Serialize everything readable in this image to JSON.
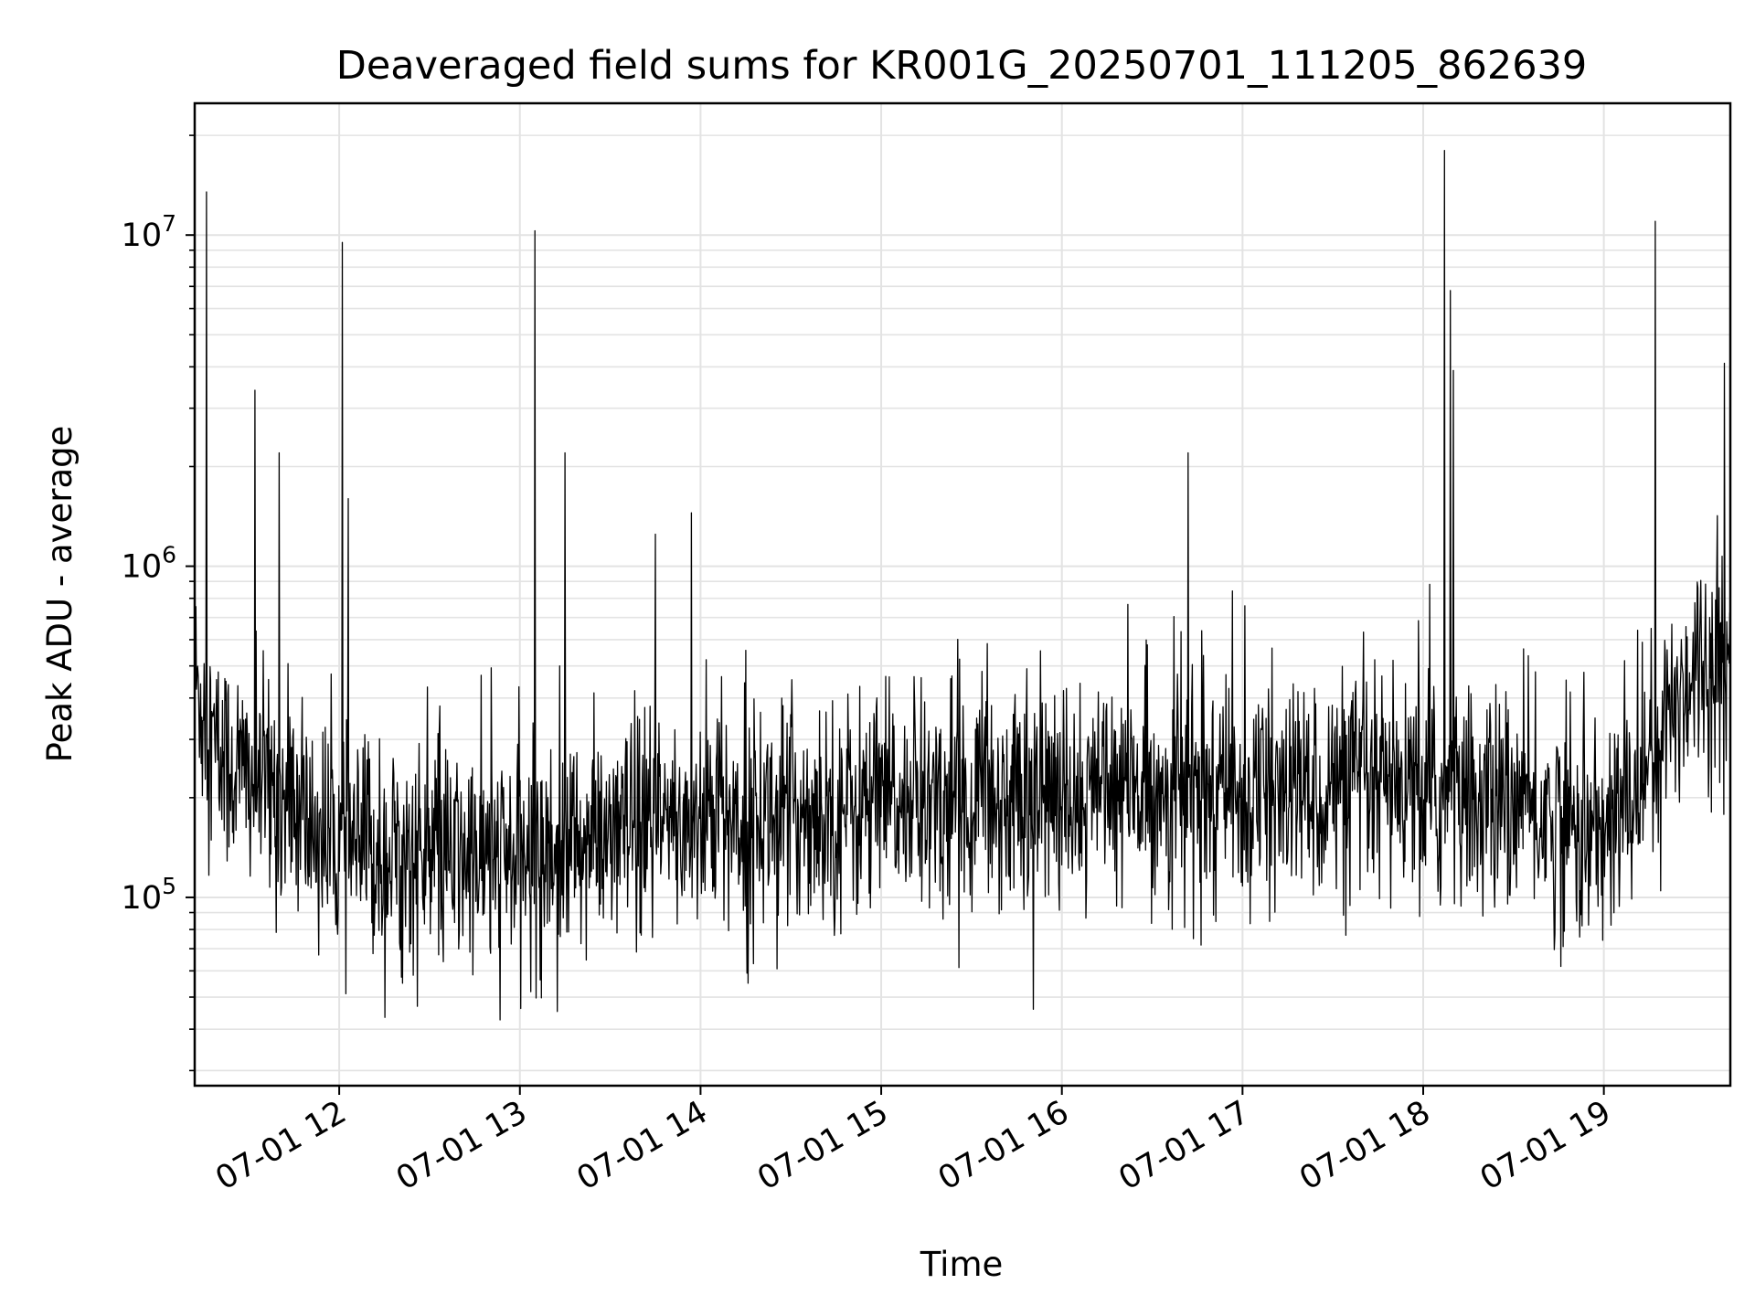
{
  "chart_data": {
    "type": "line",
    "title": "Deaveraged field sums for KR001G_20250701_111205_862639",
    "xlabel": "Time",
    "ylabel": "Peak ADU - average",
    "y_scale": "log",
    "ylim": [
      27000,
      25000000
    ],
    "xlim": [
      "07-01 11:12",
      "07-01 19:42"
    ],
    "x_tick_labels": [
      "07-01 12",
      "07-01 13",
      "07-01 14",
      "07-01 15",
      "07-01 16",
      "07-01 17",
      "07-01 18",
      "07-01 19"
    ],
    "y_tick_labels": [
      {
        "base": "10",
        "exp": "5",
        "value": 100000
      },
      {
        "base": "10",
        "exp": "6",
        "value": 1000000
      },
      {
        "base": "10",
        "exp": "7",
        "value": 10000000
      }
    ],
    "grid": true,
    "line_color": "#000000",
    "grid_color": "#e3e3e3",
    "series": [
      {
        "x": [
          "07-01 11:12",
          "07-01 11:20",
          "07-01 11:35",
          "07-01 11:45",
          "07-01 12:00",
          "07-01 12:30",
          "07-01 13:00",
          "07-01 13:30",
          "07-01 14:00",
          "07-01 14:30",
          "07-01 15:00",
          "07-01 15:30",
          "07-01 16:00",
          "07-01 16:30",
          "07-01 17:00",
          "07-01 17:30",
          "07-01 18:00",
          "07-01 18:30",
          "07-01 19:00",
          "07-01 19:15",
          "07-01 19:30",
          "07-01 19:42"
        ],
        "y": [
          450000,
          260000,
          220000,
          180000,
          140000,
          130000,
          130000,
          150000,
          170000,
          180000,
          190000,
          200000,
          200000,
          210000,
          200000,
          210000,
          200000,
          190000,
          150000,
          250000,
          520000,
          500000
        ]
      }
    ],
    "spikes": [
      {
        "x": "07-01 11:16",
        "y": 13500000
      },
      {
        "x": "07-01 11:32",
        "y": 3400000
      },
      {
        "x": "07-01 11:40",
        "y": 2200000
      },
      {
        "x": "07-01 12:01",
        "y": 9500000
      },
      {
        "x": "07-01 12:03",
        "y": 1600000
      },
      {
        "x": "07-01 13:05",
        "y": 10300000
      },
      {
        "x": "07-01 13:15",
        "y": 2200000
      },
      {
        "x": "07-01 13:45",
        "y": 1250000
      },
      {
        "x": "07-01 13:57",
        "y": 1450000
      },
      {
        "x": "07-01 16:42",
        "y": 2200000
      },
      {
        "x": "07-01 18:07",
        "y": 18000000
      },
      {
        "x": "07-01 18:09",
        "y": 6800000
      },
      {
        "x": "07-01 18:10",
        "y": 3900000
      },
      {
        "x": "07-01 19:17",
        "y": 11000000
      },
      {
        "x": "07-01 19:40",
        "y": 4100000
      }
    ]
  }
}
